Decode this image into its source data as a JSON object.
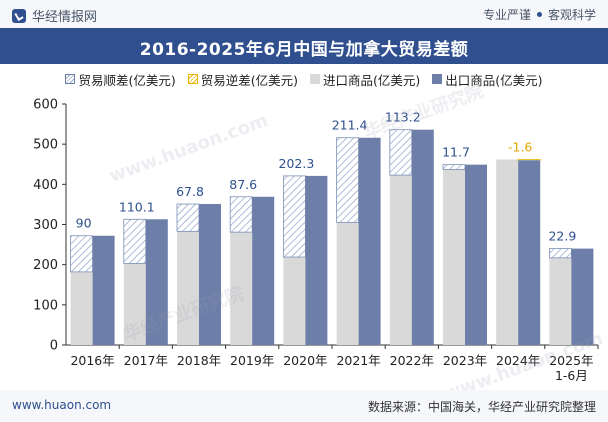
{
  "header": {
    "brand": "华经情报网",
    "tagline_left": "专业严谨",
    "tagline_right": "客观科学"
  },
  "title": "2016-2025年6月中国与加拿大贸易差额",
  "legend": {
    "surplus": "贸易顺差(亿美元)",
    "deficit": "贸易逆差(亿美元)",
    "import": "进口商品(亿美元)",
    "export": "出口商品(亿美元)"
  },
  "watermarks": [
    "华经产业研究院",
    "www.huaon.com",
    "华经产业研究院",
    "www.huaon.com"
  ],
  "footer": {
    "left": "www.huaon.com",
    "right": "数据来源：中国海关，华经产业研究院整理"
  },
  "colors": {
    "header_bg": "#2f4f8f",
    "import": "#d9d9d9",
    "export": "#6d7ea8",
    "surplus_hatch": "#9aaccc",
    "deficit_hatch": "#f0b400"
  },
  "chart_data": {
    "type": "bar",
    "categories": [
      "2016年",
      "2017年",
      "2018年",
      "2019年",
      "2020年",
      "2021年",
      "2022年",
      "2023年",
      "2024年",
      "2025年\n1-6月"
    ],
    "ylim": [
      0,
      600
    ],
    "yticks": [
      0,
      100,
      200,
      300,
      400,
      500,
      600
    ],
    "series": [
      {
        "name": "进口商品(亿美元)",
        "values": [
          182,
          203,
          283,
          281,
          219,
          305,
          423,
          437,
          462,
          217
        ]
      },
      {
        "name": "出口商品(亿美元)",
        "values": [
          272,
          313,
          351,
          369,
          421,
          516,
          536,
          449,
          460,
          240
        ]
      }
    ],
    "balance": {
      "values": [
        90,
        110.1,
        67.8,
        87.6,
        202.3,
        211.4,
        113.2,
        11.7,
        -1.6,
        22.9
      ],
      "labels": [
        "90",
        "110.1",
        "67.8",
        "87.6",
        "202.3",
        "211.4",
        "113.2",
        "11.7",
        "-1.6",
        "22.9"
      ]
    },
    "grid": false,
    "legend_position": "top"
  }
}
